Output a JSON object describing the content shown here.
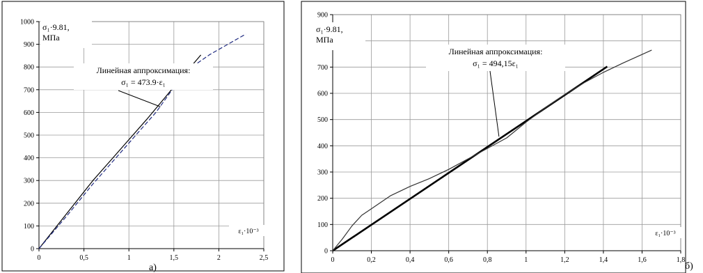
{
  "chart_data": [
    {
      "type": "line",
      "panel_label": "а)",
      "y_caption": [
        "σ₁·9.81,",
        "МПа"
      ],
      "x_caption": "ε₁·10⁻³",
      "annotation": [
        "Линейная аппроксимация:",
        "σ₁ = 473.9·ε₁"
      ],
      "xlim": [
        0,
        2.5
      ],
      "ylim": [
        0,
        1000
      ],
      "x_ticks": [
        "0",
        "0,5",
        "1",
        "1,5",
        "2",
        "2,5"
      ],
      "x_tick_values": [
        0,
        0.5,
        1,
        1.5,
        2,
        2.5
      ],
      "y_ticks": [
        "0",
        "100",
        "200",
        "300",
        "400",
        "500",
        "600",
        "700",
        "800",
        "900",
        "1000"
      ],
      "y_tick_values": [
        0,
        100,
        200,
        300,
        400,
        500,
        600,
        700,
        800,
        900,
        1000
      ],
      "grid": true,
      "series": [
        {
          "style": "solid",
          "color": "#000000",
          "x": [
            0,
            0.2,
            0.4,
            0.6,
            0.8,
            1.0,
            1.2,
            1.4,
            1.6,
            1.8
          ],
          "y": [
            0,
            100,
            200,
            300,
            390,
            480,
            570,
            665,
            760,
            853
          ]
        },
        {
          "style": "dashed",
          "color": "#1f2a80",
          "x": [
            0,
            0.3,
            0.6,
            0.9,
            1.1,
            1.3,
            1.5,
            1.7,
            1.9,
            2.1,
            2.3
          ],
          "y": [
            0,
            140,
            285,
            420,
            510,
            600,
            710,
            800,
            855,
            900,
            945
          ]
        }
      ],
      "annotation_pointer": {
        "x": 1.35,
        "y": 625
      }
    },
    {
      "type": "line",
      "panel_label": "б)",
      "y_caption": [
        "σ₁·9.81,",
        "МПа"
      ],
      "x_caption": "ε₁·10⁻³",
      "annotation": [
        "Линейная аппроксимация:",
        "σ₁ = 494,15ε₁"
      ],
      "xlim": [
        0,
        1.8
      ],
      "ylim": [
        0,
        900
      ],
      "x_ticks": [
        "0",
        "0,2",
        "0,4",
        "0,6",
        "0,8",
        "1",
        "1,2",
        "1,4",
        "1,6",
        "1,8"
      ],
      "x_tick_values": [
        0,
        0.2,
        0.4,
        0.6,
        0.8,
        1.0,
        1.2,
        1.4,
        1.6,
        1.8
      ],
      "y_ticks": [
        "0",
        "100",
        "200",
        "300",
        "400",
        "500",
        "600",
        "700",
        "800",
        "900"
      ],
      "y_tick_values": [
        0,
        100,
        200,
        300,
        400,
        500,
        600,
        700,
        800,
        900
      ],
      "grid": true,
      "series": [
        {
          "style": "thick",
          "color": "#000000",
          "x": [
            0,
            1.42
          ],
          "y": [
            0,
            702
          ]
        },
        {
          "style": "solid",
          "color": "#333333",
          "x": [
            0,
            0.05,
            0.1,
            0.15,
            0.2,
            0.3,
            0.4,
            0.5,
            0.6,
            0.7,
            0.8,
            0.9,
            1.0,
            1.1,
            1.2,
            1.3,
            1.4,
            1.5,
            1.65
          ],
          "y": [
            0,
            45,
            95,
            135,
            160,
            210,
            245,
            275,
            310,
            350,
            390,
            430,
            490,
            545,
            595,
            640,
            680,
            715,
            765
          ]
        }
      ],
      "annotation_pointer": {
        "x": 0.86,
        "y": 435
      }
    }
  ]
}
